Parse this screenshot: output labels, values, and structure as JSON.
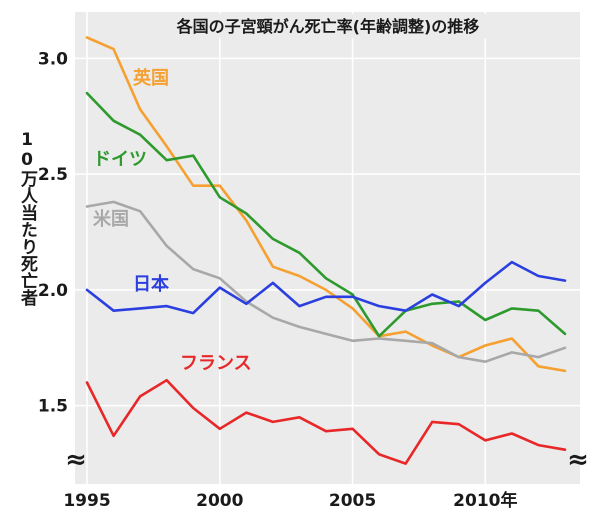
{
  "chart_data": {
    "type": "line",
    "title": "各国の子宮頸がん死亡率(年齢調整)の推移",
    "ylabel": "10万人当たり死亡者",
    "xlabel": "",
    "x": [
      1995,
      1996,
      1997,
      1998,
      1999,
      2000,
      2001,
      2002,
      2003,
      2004,
      2005,
      2006,
      2007,
      2008,
      2009,
      2010,
      2011,
      2012,
      2013
    ],
    "xlim": [
      1995,
      2013
    ],
    "ylim": [
      1.3,
      3.2
    ],
    "x_ticks": [
      1995,
      2000,
      2005,
      2010
    ],
    "x_tick_labels": [
      "1995",
      "2000",
      "2005",
      "2010年"
    ],
    "y_ticks": [
      1.5,
      2.0,
      2.5,
      3.0
    ],
    "y_tick_labels": [
      "1.5",
      "2.0",
      "2.5",
      "3.0"
    ],
    "grid": true,
    "axis_break_symbol": "≈",
    "series": [
      {
        "name": "英国",
        "color": "#f5a030",
        "values": [
          3.09,
          3.04,
          2.78,
          2.62,
          2.45,
          2.45,
          2.3,
          2.1,
          2.06,
          2.0,
          1.92,
          1.8,
          1.82,
          1.76,
          1.71,
          1.76,
          1.79,
          1.67,
          1.65
        ]
      },
      {
        "name": "ドイツ",
        "color": "#2e9a2e",
        "values": [
          2.85,
          2.73,
          2.67,
          2.56,
          2.58,
          2.4,
          2.33,
          2.22,
          2.16,
          2.05,
          1.98,
          1.8,
          1.91,
          1.94,
          1.95,
          1.87,
          1.92,
          1.91,
          1.81
        ]
      },
      {
        "name": "米国",
        "color": "#a8a8a8",
        "values": [
          2.36,
          2.38,
          2.34,
          2.19,
          2.09,
          2.05,
          1.95,
          1.88,
          1.84,
          1.81,
          1.78,
          1.79,
          1.78,
          1.77,
          1.71,
          1.69,
          1.73,
          1.71,
          1.75
        ]
      },
      {
        "name": "日本",
        "color": "#2b3fe0",
        "values": [
          2.0,
          1.91,
          1.92,
          1.93,
          1.9,
          2.01,
          1.94,
          2.03,
          1.93,
          1.97,
          1.97,
          1.93,
          1.91,
          1.98,
          1.93,
          2.03,
          2.12,
          2.06,
          2.04
        ]
      },
      {
        "name": "フランス",
        "color": "#e82828",
        "values": [
          1.6,
          1.37,
          1.54,
          1.61,
          1.49,
          1.4,
          1.47,
          1.43,
          1.45,
          1.39,
          1.4,
          1.29,
          1.25,
          1.43,
          1.42,
          1.35,
          1.38,
          1.33,
          1.31
        ]
      }
    ]
  }
}
